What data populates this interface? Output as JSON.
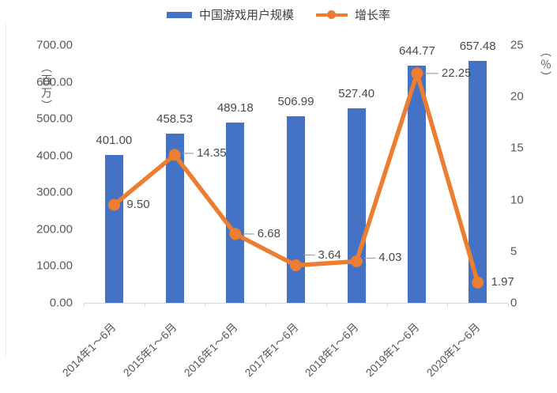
{
  "legend": {
    "series1_label": "中国游戏用户规模",
    "series2_label": "增长率"
  },
  "colors": {
    "bar": "#4472C4",
    "line": "#ED7D31",
    "axis_text": "#595959",
    "baseline": "#D9D9D9",
    "leader": "#A6A6A6"
  },
  "chart_data": {
    "type": "combo",
    "categories": [
      "2014年1～6月",
      "2015年1～6月",
      "2016年1～6月",
      "2017年1～6月",
      "2018年1～6月",
      "2019年1～6月",
      "2020年1～6月"
    ],
    "series": [
      {
        "name": "中国游戏用户规模",
        "type": "bar",
        "axis": "left",
        "values": [
          401.0,
          458.53,
          489.18,
          506.99,
          527.4,
          644.77,
          657.48
        ],
        "labels": [
          "401.00",
          "458.53",
          "489.18",
          "506.99",
          "527.40",
          "644.77",
          "657.48"
        ]
      },
      {
        "name": "增长率",
        "type": "line",
        "axis": "right",
        "values": [
          9.5,
          14.35,
          6.68,
          3.64,
          4.03,
          22.25,
          1.97
        ],
        "labels": [
          "9.50",
          "14.35",
          "6.68",
          "3.64",
          "4.03",
          "22.25",
          "1.97"
        ]
      }
    ],
    "left_axis": {
      "unit": "（百万）",
      "min": 0,
      "max": 700,
      "ticks": [
        "700.00",
        "600.00",
        "500.00",
        "400.00",
        "300.00",
        "200.00",
        "100.00",
        "0.00"
      ]
    },
    "right_axis": {
      "unit": "（％）",
      "min": 0,
      "max": 25,
      "ticks": [
        "25",
        "20",
        "15",
        "10",
        "5",
        "0"
      ]
    },
    "grid": "off",
    "legend_position": "top-center"
  }
}
